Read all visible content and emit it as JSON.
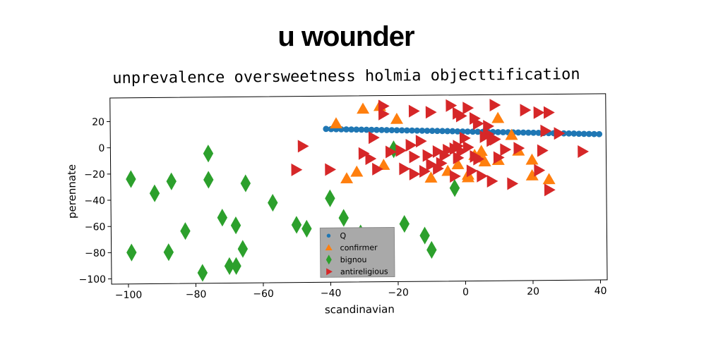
{
  "meme_title": "u wounder",
  "chart_data": {
    "type": "scatter",
    "title": "unprevalence oversweetness holmia objecttification",
    "xlabel": "scandinavian",
    "ylabel": "perennate",
    "xlim": [
      -105,
      42
    ],
    "ylim": [
      -104,
      38
    ],
    "xticks": [
      -100,
      -80,
      -60,
      -40,
      -20,
      0,
      20,
      40
    ],
    "yticks": [
      20,
      0,
      -20,
      -40,
      -60,
      -80,
      -100
    ],
    "xtick_labels": [
      "−100",
      "−80",
      "−60",
      "−40",
      "−20",
      "0",
      "20",
      "40"
    ],
    "ytick_labels": [
      "20",
      "0",
      "−20",
      "−40",
      "−60",
      "−80",
      "−100"
    ],
    "grid": false,
    "legend_position": "lower-center",
    "series": [
      {
        "name": "Q",
        "color": "#1f77b4",
        "marker": "circle",
        "points": [
          [
            -41,
            13
          ],
          [
            -39.5,
            12.8
          ],
          [
            -38,
            12.7
          ],
          [
            -36.5,
            12.6
          ],
          [
            -35,
            12.5
          ],
          [
            -33.5,
            12.4
          ],
          [
            -32,
            12.3
          ],
          [
            -30.5,
            12.2
          ],
          [
            -29,
            12.1
          ],
          [
            -27.5,
            12
          ],
          [
            -26,
            11.9
          ],
          [
            -24.5,
            11.8
          ],
          [
            -23,
            11.7
          ],
          [
            -21.5,
            11.6
          ],
          [
            -20,
            11.5
          ],
          [
            -18.5,
            11.4
          ],
          [
            -17,
            11.3
          ],
          [
            -15.5,
            11.2
          ],
          [
            -14,
            11.1
          ],
          [
            -12.5,
            11
          ],
          [
            -11,
            10.9
          ],
          [
            -9.5,
            10.8
          ],
          [
            -8,
            10.7
          ],
          [
            -6.5,
            10.6
          ],
          [
            -5,
            10.5
          ],
          [
            -3.5,
            10.4
          ],
          [
            -2,
            10.2
          ],
          [
            -0.5,
            10.1
          ],
          [
            1,
            10
          ],
          [
            2.5,
            9.9
          ],
          [
            4,
            9.8
          ],
          [
            5.5,
            9.7
          ],
          [
            7,
            9.6
          ],
          [
            8.5,
            9.5
          ],
          [
            10,
            9.4
          ],
          [
            11.5,
            9.3
          ],
          [
            13,
            9.2
          ],
          [
            14.5,
            9.1
          ],
          [
            16,
            9
          ],
          [
            17.5,
            8.9
          ],
          [
            19,
            8.8
          ],
          [
            20.5,
            8.7
          ],
          [
            22,
            8.6
          ],
          [
            23.5,
            8.4
          ],
          [
            25,
            8.3
          ],
          [
            26.5,
            8.2
          ],
          [
            28,
            8.1
          ],
          [
            29.5,
            8
          ],
          [
            31,
            7.9
          ],
          [
            32.5,
            7.8
          ],
          [
            34,
            7.6
          ],
          [
            35.5,
            7.5
          ],
          [
            37,
            7.4
          ],
          [
            38.5,
            7.3
          ],
          [
            40,
            7.2
          ]
        ]
      },
      {
        "name": "confirmer",
        "color": "#ff7f0e",
        "marker": "triangle-up",
        "points": [
          [
            -38,
            17
          ],
          [
            -30,
            28
          ],
          [
            -25,
            30
          ],
          [
            -20,
            20
          ],
          [
            -35,
            -25
          ],
          [
            -32,
            -20
          ],
          [
            -24,
            -15
          ],
          [
            -10,
            -25
          ],
          [
            -5,
            -20
          ],
          [
            -2,
            -15
          ],
          [
            1,
            -23
          ],
          [
            1,
            -25
          ],
          [
            3,
            -8
          ],
          [
            5,
            -10
          ],
          [
            5,
            -5
          ],
          [
            6,
            -13
          ],
          [
            10,
            -12
          ],
          [
            10,
            20
          ],
          [
            14,
            7
          ],
          [
            16,
            -5
          ],
          [
            20,
            -24
          ],
          [
            20,
            -12
          ],
          [
            25,
            -27
          ]
        ]
      },
      {
        "name": "bignou",
        "color": "#2ca02c",
        "marker": "diamond",
        "points": [
          [
            -99,
            -24
          ],
          [
            -92,
            -35
          ],
          [
            -87,
            -26
          ],
          [
            -83,
            -64
          ],
          [
            -88,
            -80
          ],
          [
            -99,
            -80
          ],
          [
            -78,
            -96
          ],
          [
            -76,
            -25
          ],
          [
            -76,
            -5
          ],
          [
            -72,
            -54
          ],
          [
            -70,
            -91
          ],
          [
            -68,
            -60
          ],
          [
            -68,
            -91
          ],
          [
            -66,
            -78
          ],
          [
            -65,
            -28
          ],
          [
            -57,
            -43
          ],
          [
            -50,
            -60
          ],
          [
            -47,
            -63
          ],
          [
            -40,
            -40
          ],
          [
            -36,
            -55
          ],
          [
            -31,
            -67
          ],
          [
            -30,
            -86
          ],
          [
            -28,
            -90
          ],
          [
            -18,
            -60
          ],
          [
            -12,
            -69
          ],
          [
            -10,
            -80
          ],
          [
            -3,
            -33
          ],
          [
            -21,
            -3
          ]
        ]
      },
      {
        "name": "antireligious",
        "color": "#d62728",
        "marker": "triangle-right",
        "points": [
          [
            -48,
            0
          ],
          [
            -50,
            -18
          ],
          [
            -40,
            -18
          ],
          [
            -26,
            -18
          ],
          [
            -27,
            6
          ],
          [
            -24,
            30
          ],
          [
            -24,
            24
          ],
          [
            -15,
            26
          ],
          [
            -10,
            25
          ],
          [
            -4,
            30
          ],
          [
            -2,
            24
          ],
          [
            -1,
            22
          ],
          [
            1,
            28
          ],
          [
            3,
            20
          ],
          [
            4,
            16
          ],
          [
            7,
            14
          ],
          [
            7,
            8
          ],
          [
            8,
            3
          ],
          [
            9,
            4
          ],
          [
            10,
            -10
          ],
          [
            12,
            -4
          ],
          [
            16,
            -3
          ],
          [
            9,
            30
          ],
          [
            18,
            26
          ],
          [
            22,
            24
          ],
          [
            23,
            -5
          ],
          [
            24,
            10
          ],
          [
            25,
            24
          ],
          [
            28,
            8
          ],
          [
            35,
            -6
          ],
          [
            -15,
            -9
          ],
          [
            -11,
            -8
          ],
          [
            -10,
            -15
          ],
          [
            -8,
            -5
          ],
          [
            -6,
            -8
          ],
          [
            -7,
            -14
          ],
          [
            -5,
            -4
          ],
          [
            -3,
            -3
          ],
          [
            -2,
            -10
          ],
          [
            -1,
            -5
          ],
          [
            0,
            5
          ],
          [
            1,
            -2
          ],
          [
            3,
            -9
          ],
          [
            4,
            -11
          ],
          [
            6,
            6
          ],
          [
            -15,
            -22
          ],
          [
            -18,
            -18
          ],
          [
            -12,
            -20
          ],
          [
            -8,
            -18
          ],
          [
            -3,
            -24
          ],
          [
            2,
            -20
          ],
          [
            5,
            -24
          ],
          [
            8,
            -28
          ],
          [
            14,
            -30
          ],
          [
            22,
            -20
          ],
          [
            25,
            -35
          ],
          [
            -2,
            -1
          ],
          [
            -13,
            3
          ],
          [
            -16,
            0
          ],
          [
            -19,
            -4
          ],
          [
            -22,
            -5
          ],
          [
            -28,
            -10
          ],
          [
            -30,
            -6
          ]
        ]
      }
    ]
  }
}
